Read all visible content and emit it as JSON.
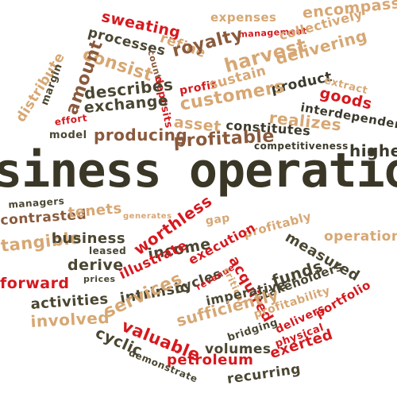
{
  "image": {
    "kind": "word-cloud",
    "headline": "siness operation",
    "colors": {
      "dark": "#3c3a2c",
      "red": "#d6191e",
      "tan": "#d7a773",
      "brown": "#8a5a3c",
      "background": "#ffffff"
    },
    "words": [
      "sweating",
      "expenses",
      "encompasses",
      "processes",
      "refine",
      "management",
      "collectively",
      "consist",
      "counts",
      "royalty",
      "harvest",
      "delivering",
      "distribute",
      "amount",
      "margin",
      "deposits",
      "profit",
      "sustain",
      "product",
      "extract",
      "goods",
      "describes",
      "exchange",
      "customers",
      "realizes",
      "interdependence",
      "effort",
      "model",
      "producing",
      "asset",
      "constitutes",
      "profitable",
      "competitiveness",
      "higher",
      "managers",
      "contrasted",
      "tenets",
      "generates",
      "gap",
      "profitably",
      "operations",
      "tangible",
      "business",
      "leased",
      "worthless",
      "income",
      "derive",
      "measured",
      "forward",
      "prices",
      "illustrate",
      "execution",
      "acquired",
      "funds",
      "intrinsic",
      "cycles",
      "revenue",
      "critical",
      "imperative",
      "stakeholders",
      "activities",
      "services",
      "involved",
      "sufficiently",
      "profitability",
      "valuable",
      "delivers",
      "portfolio",
      "cyclic",
      "bridging",
      "physical",
      "volumes",
      "petroleum",
      "exerted",
      "demonstrate",
      "recurring"
    ]
  }
}
